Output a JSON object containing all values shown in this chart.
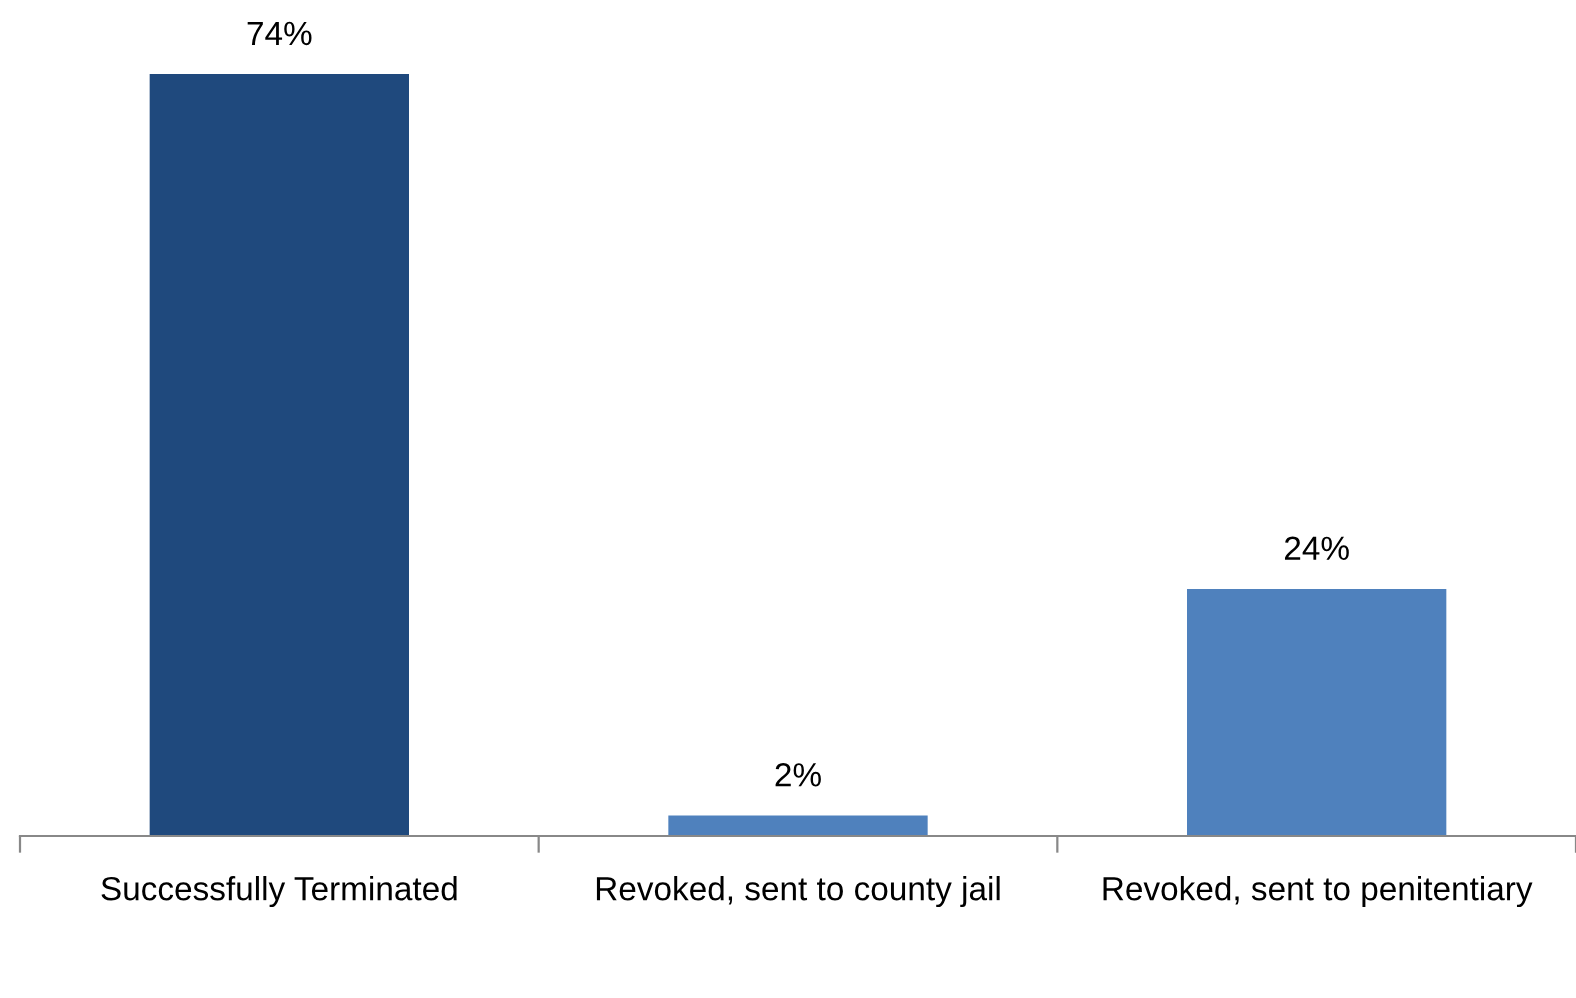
{
  "chart_data": {
    "type": "bar",
    "categories": [
      "Successfully Terminated",
      "Revoked, sent to county jail",
      "Revoked, sent to penitentiary"
    ],
    "values": [
      74,
      2,
      24
    ],
    "colors": [
      "#1f497d",
      "#4f81bd",
      "#4f81bd"
    ],
    "value_labels": [
      "74%",
      "2%",
      "24%"
    ],
    "tick_labels": "x",
    "grid": false
  }
}
